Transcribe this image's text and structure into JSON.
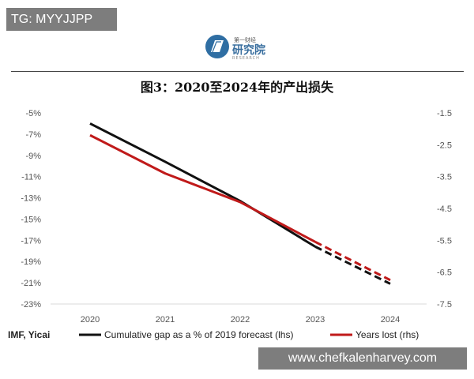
{
  "badge": {
    "text": "TG: MYYJJPP"
  },
  "logo": {
    "top_text": "第一财经",
    "main_text": "研究院",
    "sub_text": "RESEARCH"
  },
  "watermark": {
    "text": "www.chefkalenharvey.com"
  },
  "chart_data": {
    "type": "line",
    "title": "图3：2020至2024年的产出损失",
    "source": "IMF, Yicai",
    "categories": [
      "2020",
      "2021",
      "2022",
      "2023",
      "2024"
    ],
    "y_left": {
      "ticks": [
        "-5%",
        "-7%",
        "-9%",
        "-11%",
        "-13%",
        "-15%",
        "-17%",
        "-19%",
        "-21%",
        "-23%"
      ],
      "range": [
        -23,
        -5
      ]
    },
    "y_right": {
      "ticks": [
        "-1.5",
        "-2.5",
        "-3.5",
        "-4.5",
        "-5.5",
        "-6.5",
        "-7.5"
      ],
      "range": [
        -7.5,
        -1.5
      ]
    },
    "series": [
      {
        "name": "Cumulative gap as a % of 2019 forecast (lhs)",
        "axis": "left",
        "color": "#111111",
        "values": [
          -6.0,
          -9.6,
          -13.3,
          -17.6,
          -21.1
        ],
        "projected_from_index": 3
      },
      {
        "name": "Years lost (rhs)",
        "axis": "right",
        "color": "#c01a1a",
        "values": [
          -2.2,
          -3.4,
          -4.3,
          -5.55,
          -6.75
        ],
        "projected_from_index": 3
      }
    ]
  }
}
